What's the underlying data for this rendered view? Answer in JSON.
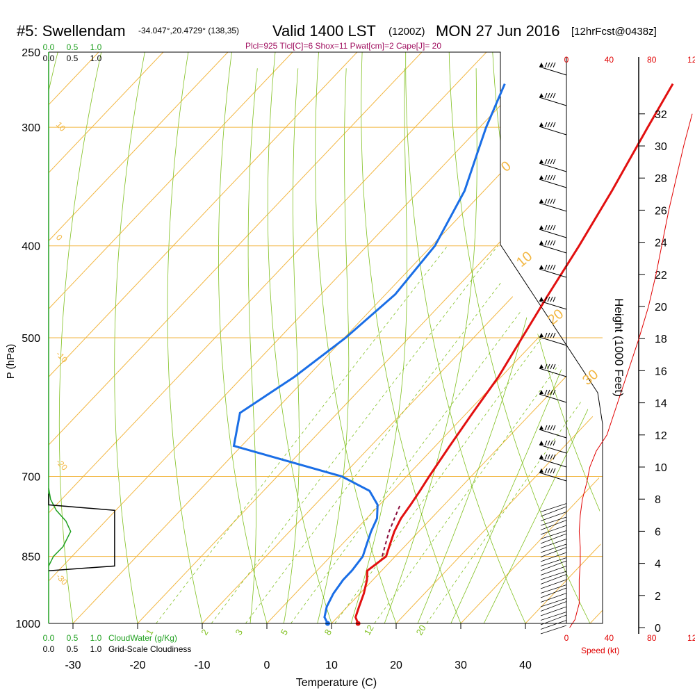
{
  "header": {
    "station": "#5: Swellendam",
    "coords": "-34.047°,20.4729° (138,35)",
    "valid": "Valid 1400 LST",
    "zulu": "(1200Z)",
    "date": "MON 27 Jun 2016",
    "forecast": "[12hrFcst@0438z]",
    "indices": "Plcl=925 Tlcl[C]=6 Shox=11 Pwat[cm]=2 Cape[J]= 20"
  },
  "colors": {
    "isotherm": "#f2b640",
    "dry_adiabat": "#80c020",
    "moist_adiabat": "#80c020",
    "mixing_ratio": "#80c020",
    "temperature": "#e21010",
    "dewpoint": "#1a6ee6",
    "parcel": "#8a1040",
    "cloud_water": "#20a020",
    "cloudiness": "#000000",
    "speed": "#e00000",
    "indices": "#a01060"
  },
  "chart_data": {
    "type": "line",
    "title": "Skew-T log-P sounding",
    "xlabel": "Temperature (C)",
    "ylabel": "P (hPa)",
    "xlim": [
      -35,
      45
    ],
    "ylim": [
      1000,
      250
    ],
    "x_ticks": [
      "-30",
      "-20",
      "-10",
      "0",
      "10",
      "20",
      "30",
      "40"
    ],
    "x_tick_values": [
      -30,
      -20,
      -10,
      0,
      10,
      20,
      30,
      40
    ],
    "p_ticks": [
      "250",
      "300",
      "400",
      "500",
      "700",
      "850",
      "1000"
    ],
    "p_tick_values": [
      250,
      300,
      400,
      500,
      700,
      850,
      1000
    ],
    "isotherm_labels": [
      "10",
      "0",
      "-10",
      "-20",
      "-30",
      "-40"
    ],
    "isotherm_label_values": [
      10,
      0,
      -10,
      -20,
      -30,
      -40
    ],
    "upper_labels": [
      "0",
      "10",
      "20",
      "30"
    ],
    "upper_label_values": [
      0,
      10,
      20,
      30
    ],
    "mixing_ratio_labels": [
      "1",
      "2",
      "3",
      "5",
      "8",
      "12",
      "20"
    ],
    "mixing_ratio_values": [
      1,
      2,
      3,
      5,
      8,
      12,
      20
    ],
    "series": [
      {
        "name": "Temperature",
        "p": [
          1000,
          985,
          960,
          930,
          900,
          880,
          850,
          825,
          800,
          775,
          750,
          725,
          700,
          650,
          600,
          550,
          500,
          450,
          400,
          350,
          300,
          270
        ],
        "t": [
          14.1,
          12.8,
          11.8,
          10.6,
          9.1,
          7.8,
          8.6,
          7.4,
          6.2,
          5.3,
          4.8,
          4.2,
          3.5,
          2.2,
          0.9,
          -0.4,
          -2.5,
          -4.8,
          -7.2,
          -10.2,
          -14.0,
          -16.5
        ]
      },
      {
        "name": "Dewpoint",
        "p": [
          1000,
          985,
          960,
          930,
          900,
          880,
          850,
          825,
          800,
          775,
          750,
          725,
          700,
          650,
          600,
          550,
          500,
          450,
          400,
          350,
          320,
          300,
          270
        ],
        "t": [
          9.4,
          8.0,
          6.8,
          5.9,
          5.4,
          5.4,
          5.0,
          3.8,
          2.6,
          1.6,
          -0.3,
          -3.6,
          -10.0,
          -31.2,
          -35.1,
          -32.0,
          -29.8,
          -28.5,
          -29.5,
          -33.0,
          -36.5,
          -39.0,
          -42.5
        ]
      },
      {
        "name": "Parcel",
        "p": [
          850,
          825,
          800,
          775,
          750
        ],
        "t": [
          8.0,
          6.7,
          5.4,
          4.3,
          3.2
        ]
      }
    ],
    "height_axis": {
      "label": "Height (1000 Feet)",
      "ticks": [
        "0",
        "2",
        "4",
        "6",
        "8",
        "10",
        "12",
        "14",
        "16",
        "18",
        "20",
        "22",
        "24",
        "26",
        "28",
        "30",
        "32"
      ]
    },
    "speed_axis": {
      "label": "Speed (kt)",
      "ticks": [
        "0",
        "40",
        "80",
        "120"
      ],
      "tick_values": [
        0,
        40,
        80,
        120
      ],
      "profile_kt": [
        3,
        8,
        10,
        12,
        12,
        12,
        13,
        13,
        12,
        13,
        15,
        19,
        22,
        28,
        38,
        48,
        58,
        68,
        77,
        84,
        90,
        96,
        103,
        110,
        118
      ],
      "profile_kft": [
        0,
        0.5,
        1,
        1.5,
        2,
        3,
        4,
        5,
        6,
        7,
        8,
        9,
        10,
        11,
        12,
        14,
        16,
        18,
        20,
        22,
        24,
        26,
        28,
        30,
        32
      ]
    },
    "cloud_water": {
      "label": "CloudWater (g/Kg)",
      "ticks": [
        "0.0",
        "0.5",
        "1.0"
      ],
      "profile_gkg": [
        0,
        0.05,
        0.15,
        0.23,
        0.18,
        0.08,
        0.02,
        0
      ],
      "profile_p": [
        870,
        850,
        830,
        800,
        780,
        760,
        740,
        720
      ]
    },
    "cloudiness": {
      "label": "Grid-Scale Cloudiness",
      "ticks": [
        "0.0",
        "0.5",
        "1.0"
      ],
      "profile_frac": [
        0,
        0.55,
        0.55,
        0.55,
        0.55,
        0,
        0
      ],
      "profile_p": [
        880,
        870,
        850,
        800,
        760,
        750,
        730
      ]
    }
  }
}
